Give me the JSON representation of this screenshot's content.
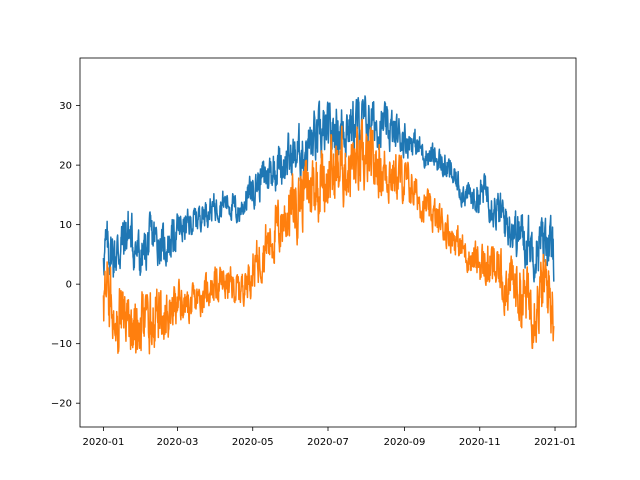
{
  "chart_data": {
    "type": "line",
    "title": "",
    "xlabel": "",
    "ylabel": "",
    "x_start": "2020-01-01",
    "x_end": "2020-12-31",
    "xlim": [
      "2019-12-13",
      "2021-01-18"
    ],
    "ylim": [
      -24,
      38
    ],
    "grid": false,
    "x_ticks": [
      {
        "value": "2020-01-01",
        "label": "2020-01"
      },
      {
        "value": "2020-03-01",
        "label": "2020-03"
      },
      {
        "value": "2020-05-01",
        "label": "2020-05"
      },
      {
        "value": "2020-07-01",
        "label": "2020-07"
      },
      {
        "value": "2020-09-01",
        "label": "2020-09"
      },
      {
        "value": "2020-11-01",
        "label": "2020-11"
      },
      {
        "value": "2021-01-01",
        "label": "2021-01"
      }
    ],
    "y_ticks": [
      {
        "value": -20,
        "label": "−20"
      },
      {
        "value": -10,
        "label": "−10"
      },
      {
        "value": 0,
        "label": "0"
      },
      {
        "value": 10,
        "label": "10"
      },
      {
        "value": 20,
        "label": "20"
      },
      {
        "value": 30,
        "label": "30"
      }
    ],
    "series": [
      {
        "color": "#1f77b4",
        "x": [
          "2020-01-01",
          "2020-01-11",
          "2020-01-21",
          "2020-01-31",
          "2020-02-10",
          "2020-02-20",
          "2020-03-01",
          "2020-03-11",
          "2020-03-21",
          "2020-03-31",
          "2020-04-10",
          "2020-04-20",
          "2020-04-30",
          "2020-05-10",
          "2020-05-20",
          "2020-05-30",
          "2020-06-09",
          "2020-06-19",
          "2020-06-29",
          "2020-07-09",
          "2020-07-19",
          "2020-07-29",
          "2020-08-08",
          "2020-08-18",
          "2020-08-28",
          "2020-09-07",
          "2020-09-17",
          "2020-09-27",
          "2020-10-07",
          "2020-10-17",
          "2020-10-27",
          "2020-11-06",
          "2020-11-16",
          "2020-11-26",
          "2020-12-06",
          "2020-12-16",
          "2020-12-26",
          "2020-12-31"
        ],
        "y": [
          6,
          5,
          9,
          4,
          8,
          6,
          9,
          10,
          12,
          13,
          14,
          12,
          16,
          18,
          20,
          21,
          22,
          24,
          25,
          26,
          27,
          27,
          27,
          26,
          25,
          24,
          22,
          21,
          19,
          16,
          14,
          16,
          12,
          10,
          8,
          6,
          8,
          4
        ]
      },
      {
        "color": "#ff7f0e",
        "x": [
          "2020-01-01",
          "2020-01-11",
          "2020-01-21",
          "2020-01-31",
          "2020-02-10",
          "2020-02-20",
          "2020-03-01",
          "2020-03-11",
          "2020-03-21",
          "2020-03-31",
          "2020-04-10",
          "2020-04-20",
          "2020-04-30",
          "2020-05-10",
          "2020-05-20",
          "2020-05-30",
          "2020-06-09",
          "2020-06-19",
          "2020-06-29",
          "2020-07-09",
          "2020-07-19",
          "2020-07-29",
          "2020-08-08",
          "2020-08-18",
          "2020-08-28",
          "2020-09-07",
          "2020-09-17",
          "2020-09-27",
          "2020-10-07",
          "2020-10-17",
          "2020-10-27",
          "2020-11-06",
          "2020-11-16",
          "2020-11-26",
          "2020-12-06",
          "2020-12-16",
          "2020-12-26",
          "2020-12-31"
        ],
        "y": [
          -2,
          -4,
          -6,
          -8,
          -6,
          -5,
          -3,
          -4,
          -2,
          0,
          0,
          -1,
          2,
          6,
          9,
          12,
          15,
          17,
          18,
          19,
          20,
          20,
          20,
          19,
          18,
          16,
          13,
          11,
          9,
          6,
          4,
          3,
          2,
          0,
          -2,
          -3,
          0,
          -4
        ]
      }
    ]
  }
}
